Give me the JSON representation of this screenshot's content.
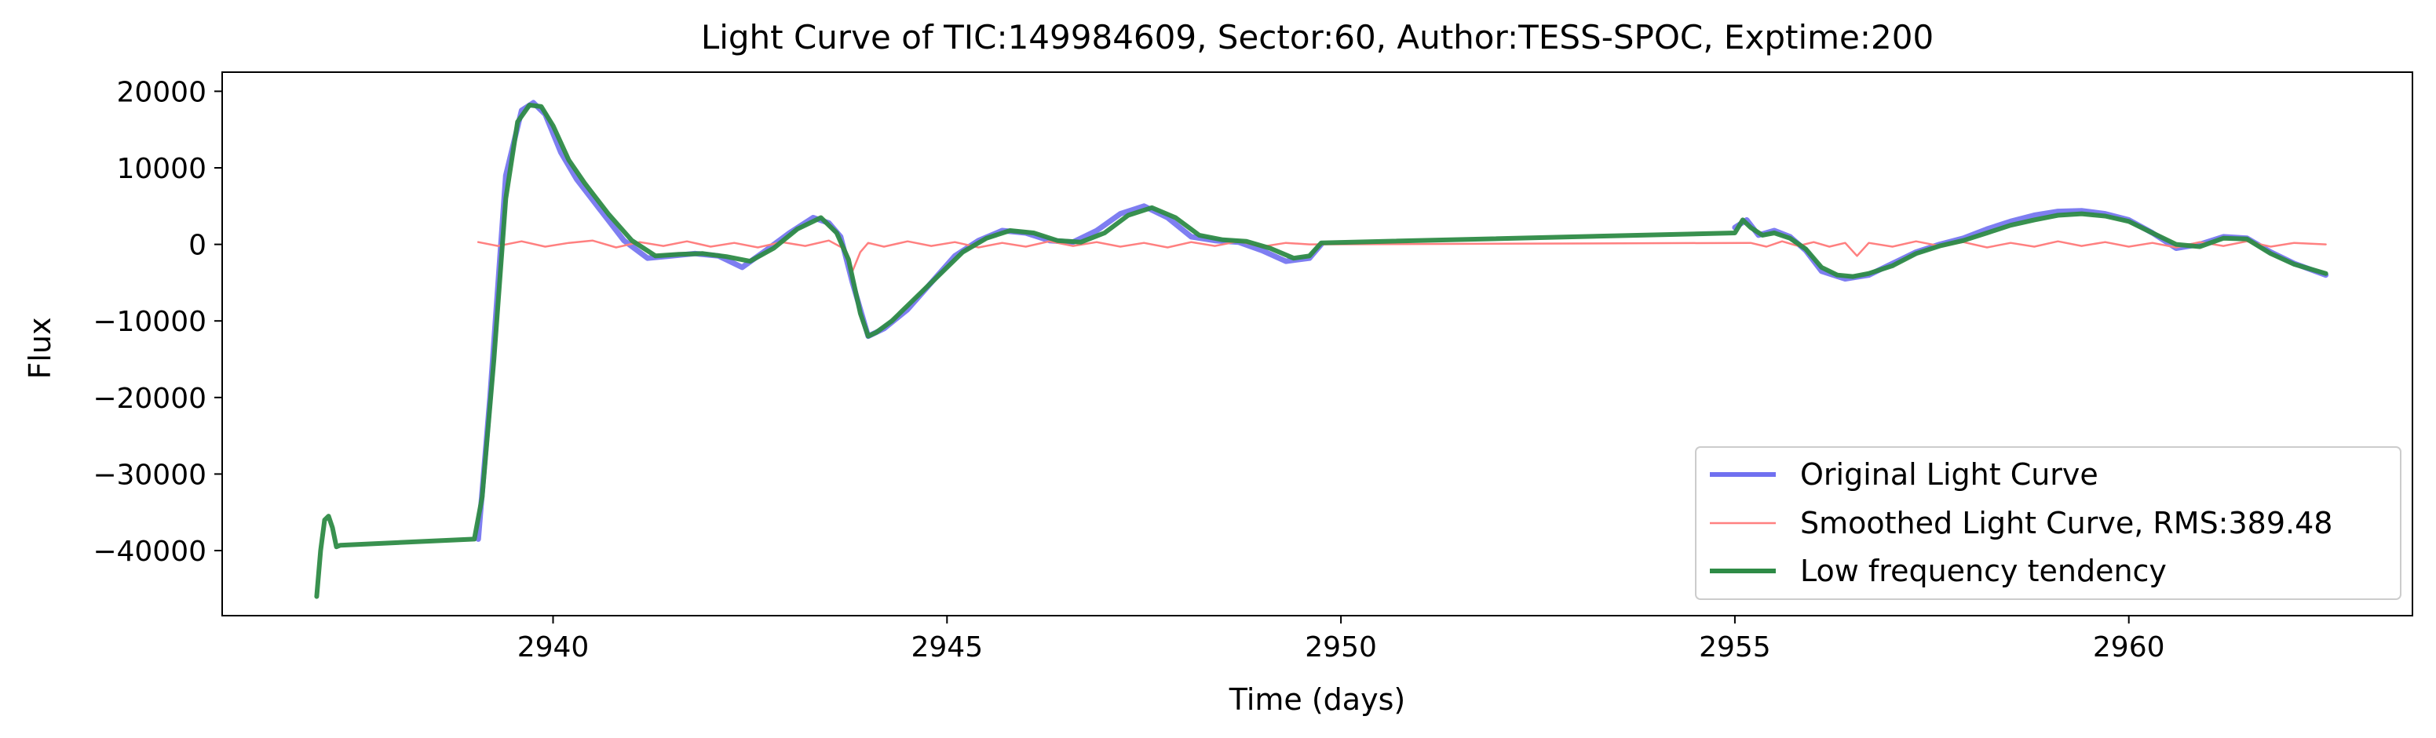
{
  "chart_data": {
    "type": "line",
    "title": "Light Curve of TIC:149984609, Sector:60, Author:TESS-SPOC, Exptime:200",
    "xlabel": "Time (days)",
    "ylabel": "Flux",
    "xlim": [
      2935.8,
      2963.6
    ],
    "ylim": [
      -48500,
      22500
    ],
    "xticks": [
      2940,
      2945,
      2950,
      2955,
      2960
    ],
    "xtick_labels": [
      "2940",
      "2945",
      "2950",
      "2955",
      "2960"
    ],
    "yticks": [
      20000,
      10000,
      0,
      -10000,
      -20000,
      -30000,
      -40000
    ],
    "ytick_labels": [
      "20000",
      "10000",
      "0",
      "−10000",
      "−20000",
      "−30000",
      "−40000"
    ],
    "grid": false,
    "legend_position": "lower-right",
    "series": [
      {
        "name": "Original Light Curve",
        "color": "#7070f0",
        "x": [
          2939.05,
          2939.2,
          2939.4,
          2939.6,
          2939.75,
          2939.9,
          2940.1,
          2940.3,
          2940.6,
          2940.9,
          2941.2,
          2941.5,
          2941.8,
          2942.1,
          2942.4,
          2942.7,
          2943.0,
          2943.3,
          2943.5,
          2943.65,
          2943.8,
          2944.0,
          2944.2,
          2944.5,
          2944.8,
          2945.1,
          2945.4,
          2945.7,
          2946.0,
          2946.3,
          2946.6,
          2946.9,
          2947.2,
          2947.5,
          2947.8,
          2948.1,
          2948.4,
          2948.7,
          2949.0,
          2949.3,
          2949.6,
          2949.75,
          null,
          2955.0,
          2955.15,
          2955.3,
          2955.5,
          2955.7,
          2955.9,
          2956.1,
          2956.4,
          2956.7,
          2957.0,
          2957.3,
          2957.6,
          2957.9,
          2958.2,
          2958.5,
          2958.8,
          2959.1,
          2959.4,
          2959.7,
          2960.0,
          2960.3,
          2960.6,
          2960.9,
          2961.2,
          2961.5,
          2961.8,
          2962.1,
          2962.5
        ],
        "y": [
          -38500,
          -20000,
          9000,
          17500,
          18500,
          17000,
          12000,
          8500,
          4500,
          500,
          -1800,
          -1500,
          -1200,
          -1500,
          -3000,
          -800,
          1500,
          3500,
          2800,
          1000,
          -5000,
          -12000,
          -11000,
          -8500,
          -5000,
          -1500,
          500,
          1800,
          1500,
          500,
          300,
          1800,
          4000,
          5000,
          3500,
          1000,
          500,
          300,
          -800,
          -2200,
          -1800,
          0,
          null,
          2200,
          3200,
          1200,
          1800,
          1000,
          -800,
          -3500,
          -4500,
          -4000,
          -2500,
          -1000,
          0,
          800,
          2000,
          3000,
          3800,
          4300,
          4400,
          4000,
          3200,
          1500,
          -500,
          0,
          1000,
          800,
          -1000,
          -2500,
          -4000
        ]
      },
      {
        "name": "Smoothed Light Curve, RMS:389.48",
        "color": "#ff8080",
        "x": [
          2939.05,
          2939.3,
          2939.6,
          2939.9,
          2940.2,
          2940.5,
          2940.8,
          2941.1,
          2941.4,
          2941.7,
          2942.0,
          2942.3,
          2942.6,
          2942.9,
          2943.2,
          2943.5,
          2943.7,
          2943.8,
          2943.9,
          2944.0,
          2944.2,
          2944.5,
          2944.8,
          2945.1,
          2945.4,
          2945.7,
          2946.0,
          2946.3,
          2946.6,
          2946.9,
          2947.2,
          2947.5,
          2947.8,
          2948.1,
          2948.4,
          2948.7,
          2949.0,
          2949.3,
          2949.6,
          2955.2,
          2955.4,
          2955.6,
          2955.8,
          2956.0,
          2956.2,
          2956.4,
          2956.55,
          2956.7,
          2957.0,
          2957.3,
          2957.6,
          2957.9,
          2958.2,
          2958.5,
          2958.8,
          2959.1,
          2959.4,
          2959.7,
          2960.0,
          2960.3,
          2960.6,
          2960.9,
          2961.2,
          2961.5,
          2961.8,
          2962.1,
          2962.5
        ],
        "y": [
          300,
          -200,
          400,
          -300,
          200,
          500,
          -400,
          300,
          -200,
          400,
          -300,
          200,
          -400,
          300,
          -200,
          500,
          -600,
          -3500,
          -1000,
          200,
          -300,
          400,
          -200,
          300,
          -400,
          200,
          -300,
          400,
          -200,
          300,
          -300,
          200,
          -400,
          300,
          -200,
          400,
          -300,
          200,
          0,
          200,
          -300,
          400,
          -200,
          300,
          -300,
          200,
          -1500,
          200,
          -300,
          400,
          -200,
          300,
          -400,
          200,
          -300,
          400,
          -200,
          300,
          -300,
          200,
          -400,
          300,
          -200,
          400,
          -300,
          200,
          0
        ]
      },
      {
        "name": "Low frequency tendency",
        "color": "#2e8b46",
        "x": [
          2937.0,
          2937.05,
          2937.1,
          2937.15,
          2937.2,
          2937.25,
          2937.3,
          2939.0,
          2939.1,
          2939.25,
          2939.4,
          2939.55,
          2939.7,
          2939.85,
          2940.0,
          2940.2,
          2940.4,
          2940.7,
          2941.0,
          2941.3,
          2941.6,
          2941.9,
          2942.2,
          2942.5,
          2942.8,
          2943.1,
          2943.4,
          2943.6,
          2943.75,
          2943.9,
          2944.0,
          2944.1,
          2944.3,
          2944.6,
          2944.9,
          2945.2,
          2945.5,
          2945.8,
          2946.1,
          2946.4,
          2946.7,
          2947.0,
          2947.3,
          2947.6,
          2947.9,
          2948.2,
          2948.5,
          2948.8,
          2949.1,
          2949.4,
          2949.6,
          2949.75,
          2955.0,
          2955.1,
          2955.2,
          2955.35,
          2955.5,
          2955.7,
          2955.9,
          2956.1,
          2956.3,
          2956.5,
          2956.7,
          2957.0,
          2957.3,
          2957.6,
          2957.9,
          2958.2,
          2958.5,
          2958.8,
          2959.1,
          2959.4,
          2959.7,
          2960.0,
          2960.3,
          2960.6,
          2960.9,
          2961.2,
          2961.5,
          2961.8,
          2962.1,
          2962.5
        ],
        "y": [
          -46000,
          -40000,
          -36000,
          -35500,
          -37000,
          -39500,
          -39300,
          -38500,
          -33000,
          -15000,
          6000,
          16000,
          18200,
          18000,
          15500,
          11000,
          8000,
          4000,
          500,
          -1500,
          -1300,
          -1200,
          -1600,
          -2200,
          -500,
          2000,
          3500,
          1500,
          -2000,
          -9000,
          -12000,
          -11500,
          -10000,
          -7000,
          -4000,
          -1000,
          800,
          1800,
          1500,
          500,
          300,
          1500,
          3800,
          4800,
          3500,
          1200,
          600,
          400,
          -500,
          -1800,
          -1500,
          200,
          1500,
          3200,
          2200,
          1200,
          1500,
          800,
          -600,
          -3000,
          -4000,
          -4200,
          -3800,
          -2800,
          -1200,
          -200,
          500,
          1500,
          2500,
          3200,
          3800,
          4000,
          3700,
          3000,
          1500,
          0,
          -300,
          800,
          700,
          -1200,
          -2600,
          -3800
        ]
      }
    ]
  }
}
